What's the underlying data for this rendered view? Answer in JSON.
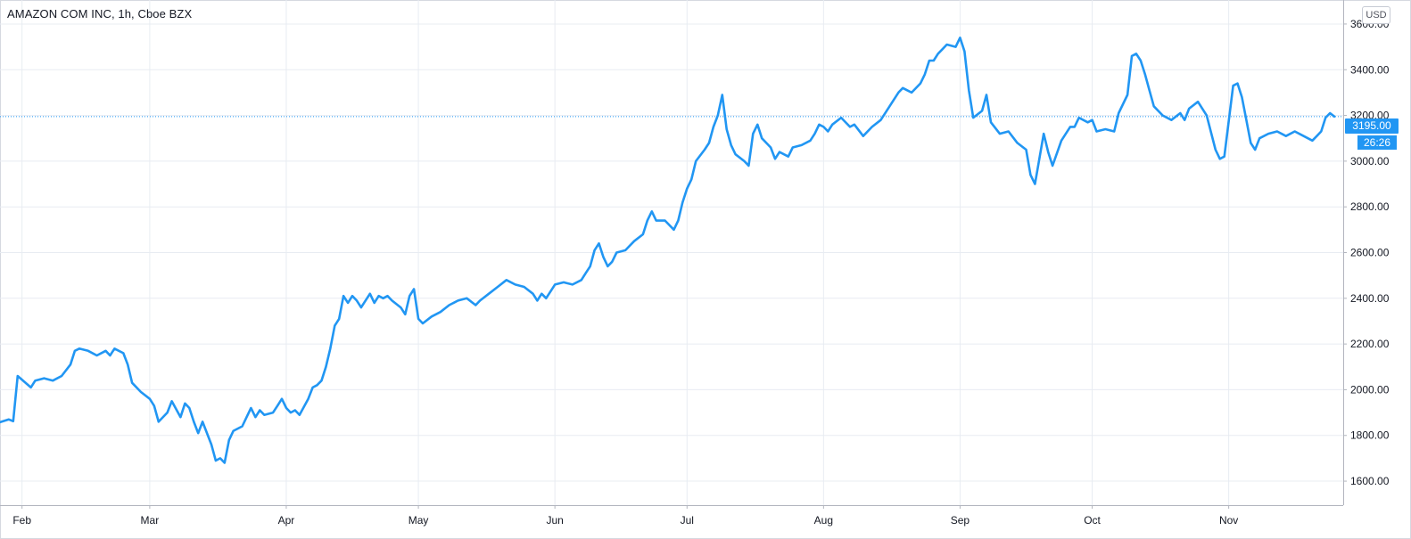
{
  "header": {
    "title": "AMAZON COM INC, 1h, Cboe BZX"
  },
  "price_scale": {
    "currency": "USD",
    "last_price": "3195.00",
    "countdown": "26:26"
  },
  "colors": {
    "line": "#2196f3",
    "grid": "#e8ecf2",
    "axis_text": "#131722",
    "last_price_line": "#2196f3"
  },
  "chart_data": {
    "type": "line",
    "title": "AMAZON COM INC, 1h, Cboe BZX",
    "xlabel": "",
    "ylabel": "",
    "y_ticks": [
      1600,
      1800,
      2000,
      2200,
      2400,
      2600,
      2800,
      3000,
      3200,
      3400,
      3600
    ],
    "y_tick_labels": [
      "1600.00",
      "1800.00",
      "2000.00",
      "2200.00",
      "2400.00",
      "2600.00",
      "2800.00",
      "3000.00",
      "3200.00",
      "3400.00",
      "3600.00"
    ],
    "ylim": [
      1495,
      3705
    ],
    "x_ticks": [
      {
        "label": "Feb",
        "date": "2020-02-01"
      },
      {
        "label": "Mar",
        "date": "2020-03-01"
      },
      {
        "label": "Apr",
        "date": "2020-04-01"
      },
      {
        "label": "May",
        "date": "2020-05-01"
      },
      {
        "label": "Jun",
        "date": "2020-06-01"
      },
      {
        "label": "Jul",
        "date": "2020-07-01"
      },
      {
        "label": "Aug",
        "date": "2020-08-01"
      },
      {
        "label": "Sep",
        "date": "2020-09-01"
      },
      {
        "label": "Oct",
        "date": "2020-10-01"
      },
      {
        "label": "Nov",
        "date": "2020-11-01"
      }
    ],
    "xlim": [
      "2020-01-27",
      "2020-11-27"
    ],
    "last_value": 3195.0,
    "grid": true,
    "series": [
      {
        "points": [
          [
            "2020-01-27",
            1858
          ],
          [
            "2020-01-29",
            1870
          ],
          [
            "2020-01-30",
            1862
          ],
          [
            "2020-01-31",
            2060
          ],
          [
            "2020-02-03",
            2010
          ],
          [
            "2020-02-04",
            2040
          ],
          [
            "2020-02-06",
            2050
          ],
          [
            "2020-02-08",
            2040
          ],
          [
            "2020-02-10",
            2060
          ],
          [
            "2020-02-12",
            2110
          ],
          [
            "2020-02-13",
            2170
          ],
          [
            "2020-02-14",
            2180
          ],
          [
            "2020-02-16",
            2170
          ],
          [
            "2020-02-18",
            2150
          ],
          [
            "2020-02-20",
            2170
          ],
          [
            "2020-02-21",
            2150
          ],
          [
            "2020-02-22",
            2180
          ],
          [
            "2020-02-24",
            2160
          ],
          [
            "2020-02-25",
            2110
          ],
          [
            "2020-02-26",
            2030
          ],
          [
            "2020-02-28",
            1990
          ],
          [
            "2020-03-01",
            1960
          ],
          [
            "2020-03-02",
            1930
          ],
          [
            "2020-03-03",
            1860
          ],
          [
            "2020-03-05",
            1900
          ],
          [
            "2020-03-06",
            1950
          ],
          [
            "2020-03-08",
            1880
          ],
          [
            "2020-03-09",
            1940
          ],
          [
            "2020-03-10",
            1920
          ],
          [
            "2020-03-11",
            1860
          ],
          [
            "2020-03-12",
            1810
          ],
          [
            "2020-03-13",
            1860
          ],
          [
            "2020-03-15",
            1760
          ],
          [
            "2020-03-16",
            1690
          ],
          [
            "2020-03-17",
            1700
          ],
          [
            "2020-03-18",
            1680
          ],
          [
            "2020-03-19",
            1780
          ],
          [
            "2020-03-20",
            1820
          ],
          [
            "2020-03-22",
            1840
          ],
          [
            "2020-03-23",
            1880
          ],
          [
            "2020-03-24",
            1920
          ],
          [
            "2020-03-25",
            1880
          ],
          [
            "2020-03-26",
            1910
          ],
          [
            "2020-03-27",
            1890
          ],
          [
            "2020-03-29",
            1900
          ],
          [
            "2020-03-30",
            1930
          ],
          [
            "2020-03-31",
            1960
          ],
          [
            "2020-04-01",
            1920
          ],
          [
            "2020-04-02",
            1900
          ],
          [
            "2020-04-03",
            1910
          ],
          [
            "2020-04-04",
            1890
          ],
          [
            "2020-04-06",
            1960
          ],
          [
            "2020-04-07",
            2010
          ],
          [
            "2020-04-08",
            2020
          ],
          [
            "2020-04-09",
            2040
          ],
          [
            "2020-04-10",
            2100
          ],
          [
            "2020-04-11",
            2180
          ],
          [
            "2020-04-12",
            2280
          ],
          [
            "2020-04-13",
            2310
          ],
          [
            "2020-04-14",
            2410
          ],
          [
            "2020-04-15",
            2380
          ],
          [
            "2020-04-16",
            2410
          ],
          [
            "2020-04-17",
            2390
          ],
          [
            "2020-04-18",
            2360
          ],
          [
            "2020-04-20",
            2420
          ],
          [
            "2020-04-21",
            2380
          ],
          [
            "2020-04-22",
            2410
          ],
          [
            "2020-04-23",
            2400
          ],
          [
            "2020-04-24",
            2410
          ],
          [
            "2020-04-25",
            2390
          ],
          [
            "2020-04-27",
            2360
          ],
          [
            "2020-04-28",
            2330
          ],
          [
            "2020-04-29",
            2410
          ],
          [
            "2020-04-30",
            2440
          ],
          [
            "2020-05-01",
            2310
          ],
          [
            "2020-05-02",
            2290
          ],
          [
            "2020-05-04",
            2320
          ],
          [
            "2020-05-06",
            2340
          ],
          [
            "2020-05-08",
            2370
          ],
          [
            "2020-05-10",
            2390
          ],
          [
            "2020-05-12",
            2400
          ],
          [
            "2020-05-14",
            2370
          ],
          [
            "2020-05-15",
            2390
          ],
          [
            "2020-05-17",
            2420
          ],
          [
            "2020-05-19",
            2450
          ],
          [
            "2020-05-21",
            2480
          ],
          [
            "2020-05-23",
            2460
          ],
          [
            "2020-05-25",
            2450
          ],
          [
            "2020-05-27",
            2420
          ],
          [
            "2020-05-28",
            2390
          ],
          [
            "2020-05-29",
            2420
          ],
          [
            "2020-05-30",
            2400
          ],
          [
            "2020-06-01",
            2460
          ],
          [
            "2020-06-03",
            2470
          ],
          [
            "2020-06-05",
            2460
          ],
          [
            "2020-06-07",
            2480
          ],
          [
            "2020-06-08",
            2510
          ],
          [
            "2020-06-09",
            2540
          ],
          [
            "2020-06-10",
            2610
          ],
          [
            "2020-06-11",
            2640
          ],
          [
            "2020-06-12",
            2580
          ],
          [
            "2020-06-13",
            2540
          ],
          [
            "2020-06-14",
            2560
          ],
          [
            "2020-06-15",
            2600
          ],
          [
            "2020-06-17",
            2610
          ],
          [
            "2020-06-19",
            2650
          ],
          [
            "2020-06-21",
            2680
          ],
          [
            "2020-06-22",
            2740
          ],
          [
            "2020-06-23",
            2780
          ],
          [
            "2020-06-24",
            2740
          ],
          [
            "2020-06-26",
            2740
          ],
          [
            "2020-06-28",
            2700
          ],
          [
            "2020-06-29",
            2740
          ],
          [
            "2020-06-30",
            2820
          ],
          [
            "2020-07-01",
            2880
          ],
          [
            "2020-07-02",
            2920
          ],
          [
            "2020-07-03",
            3000
          ],
          [
            "2020-07-05",
            3050
          ],
          [
            "2020-07-06",
            3080
          ],
          [
            "2020-07-07",
            3150
          ],
          [
            "2020-07-08",
            3200
          ],
          [
            "2020-07-09",
            3290
          ],
          [
            "2020-07-10",
            3140
          ],
          [
            "2020-07-11",
            3070
          ],
          [
            "2020-07-12",
            3030
          ],
          [
            "2020-07-14",
            3000
          ],
          [
            "2020-07-15",
            2980
          ],
          [
            "2020-07-16",
            3120
          ],
          [
            "2020-07-17",
            3160
          ],
          [
            "2020-07-18",
            3100
          ],
          [
            "2020-07-20",
            3060
          ],
          [
            "2020-07-21",
            3010
          ],
          [
            "2020-07-22",
            3040
          ],
          [
            "2020-07-24",
            3020
          ],
          [
            "2020-07-25",
            3060
          ],
          [
            "2020-07-27",
            3070
          ],
          [
            "2020-07-29",
            3090
          ],
          [
            "2020-07-30",
            3120
          ],
          [
            "2020-07-31",
            3160
          ],
          [
            "2020-08-01",
            3150
          ],
          [
            "2020-08-02",
            3130
          ],
          [
            "2020-08-03",
            3160
          ],
          [
            "2020-08-05",
            3190
          ],
          [
            "2020-08-07",
            3150
          ],
          [
            "2020-08-08",
            3160
          ],
          [
            "2020-08-10",
            3110
          ],
          [
            "2020-08-12",
            3150
          ],
          [
            "2020-08-14",
            3180
          ],
          [
            "2020-08-16",
            3240
          ],
          [
            "2020-08-18",
            3300
          ],
          [
            "2020-08-19",
            3320
          ],
          [
            "2020-08-21",
            3300
          ],
          [
            "2020-08-23",
            3340
          ],
          [
            "2020-08-24",
            3380
          ],
          [
            "2020-08-25",
            3440
          ],
          [
            "2020-08-26",
            3440
          ],
          [
            "2020-08-27",
            3470
          ],
          [
            "2020-08-28",
            3490
          ],
          [
            "2020-08-29",
            3510
          ],
          [
            "2020-08-31",
            3500
          ],
          [
            "2020-09-01",
            3540
          ],
          [
            "2020-09-02",
            3480
          ],
          [
            "2020-09-03",
            3310
          ],
          [
            "2020-09-04",
            3190
          ],
          [
            "2020-09-06",
            3220
          ],
          [
            "2020-09-07",
            3290
          ],
          [
            "2020-09-08",
            3170
          ],
          [
            "2020-09-10",
            3120
          ],
          [
            "2020-09-12",
            3130
          ],
          [
            "2020-09-14",
            3080
          ],
          [
            "2020-09-16",
            3050
          ],
          [
            "2020-09-17",
            2940
          ],
          [
            "2020-09-18",
            2900
          ],
          [
            "2020-09-19",
            3010
          ],
          [
            "2020-09-20",
            3120
          ],
          [
            "2020-09-21",
            3040
          ],
          [
            "2020-09-22",
            2980
          ],
          [
            "2020-09-24",
            3090
          ],
          [
            "2020-09-26",
            3150
          ],
          [
            "2020-09-27",
            3150
          ],
          [
            "2020-09-28",
            3190
          ],
          [
            "2020-09-30",
            3170
          ],
          [
            "2020-10-01",
            3180
          ],
          [
            "2020-10-02",
            3130
          ],
          [
            "2020-10-04",
            3140
          ],
          [
            "2020-10-06",
            3130
          ],
          [
            "2020-10-07",
            3210
          ],
          [
            "2020-10-09",
            3290
          ],
          [
            "2020-10-10",
            3460
          ],
          [
            "2020-10-11",
            3470
          ],
          [
            "2020-10-12",
            3440
          ],
          [
            "2020-10-13",
            3380
          ],
          [
            "2020-10-14",
            3310
          ],
          [
            "2020-10-15",
            3240
          ],
          [
            "2020-10-17",
            3200
          ],
          [
            "2020-10-19",
            3180
          ],
          [
            "2020-10-21",
            3210
          ],
          [
            "2020-10-22",
            3180
          ],
          [
            "2020-10-23",
            3230
          ],
          [
            "2020-10-25",
            3260
          ],
          [
            "2020-10-27",
            3200
          ],
          [
            "2020-10-29",
            3050
          ],
          [
            "2020-10-30",
            3010
          ],
          [
            "2020-10-31",
            3020
          ],
          [
            "2020-11-02",
            3330
          ],
          [
            "2020-11-03",
            3340
          ],
          [
            "2020-11-04",
            3280
          ],
          [
            "2020-11-05",
            3180
          ],
          [
            "2020-11-06",
            3080
          ],
          [
            "2020-11-07",
            3050
          ],
          [
            "2020-11-08",
            3100
          ],
          [
            "2020-11-10",
            3120
          ],
          [
            "2020-11-12",
            3130
          ],
          [
            "2020-11-14",
            3110
          ],
          [
            "2020-11-16",
            3130
          ],
          [
            "2020-11-18",
            3110
          ],
          [
            "2020-11-20",
            3090
          ],
          [
            "2020-11-21",
            3110
          ],
          [
            "2020-11-22",
            3130
          ],
          [
            "2020-11-23",
            3190
          ],
          [
            "2020-11-24",
            3210
          ],
          [
            "2020-11-25",
            3195
          ]
        ]
      }
    ]
  }
}
